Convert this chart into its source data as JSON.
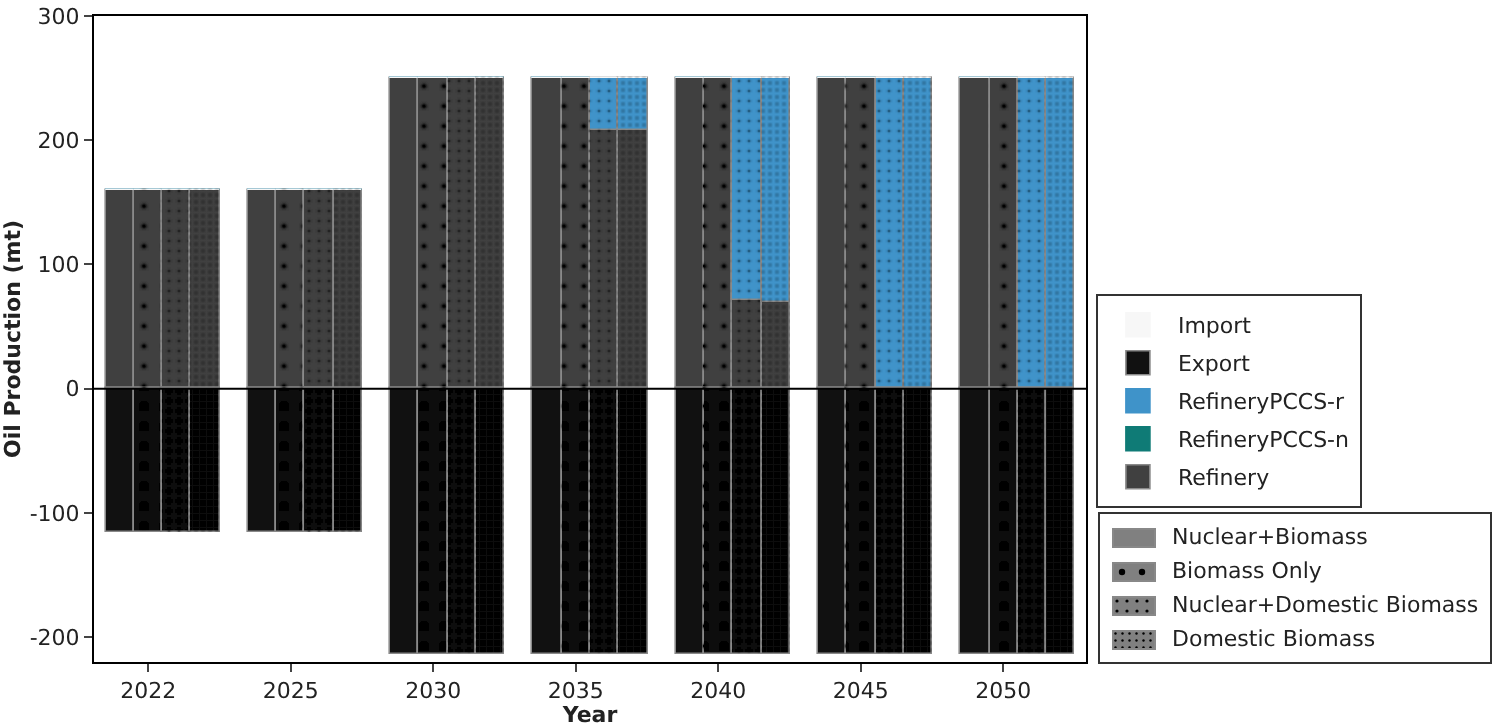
{
  "chart_data": {
    "type": "bar",
    "stacked": true,
    "xlabel": "Year",
    "ylabel": "Oil Production (mt)",
    "categories": [
      null,
      "2022",
      null,
      null,
      null,
      null,
      "2025",
      null,
      null,
      null,
      null,
      "2030",
      null,
      null,
      null,
      null,
      "2035",
      null,
      null,
      null,
      null,
      "2040",
      null,
      null,
      null,
      null,
      "2045",
      null,
      null,
      null,
      null,
      "2050",
      null,
      null
    ],
    "ylim": [
      -220,
      300
    ],
    "yticks": [
      -200,
      -100,
      0,
      100,
      200,
      300
    ],
    "legend": "right",
    "ref_lines": [
      {
        "axis": "y",
        "value": 0,
        "color": "#000000"
      }
    ],
    "annotations": [
      "Nuclear+Biomass",
      "Biomass Only",
      "Nuclear+Domestic Biomass",
      "Domestic Biomass"
    ],
    "series": [
      {
        "name": "Refinery",
        "color": "#404040",
        "values": [
          160,
          160,
          160,
          160,
          null,
          160,
          160,
          160,
          160,
          null,
          250,
          250,
          250,
          250,
          null,
          250,
          250,
          208,
          208,
          null,
          250,
          250,
          72,
          69,
          null,
          250,
          250,
          0,
          0,
          null,
          250,
          250,
          0,
          0
        ]
      },
      {
        "name": "RefineryPCCS-n",
        "color": "#0f7b76",
        "values": [
          0,
          0,
          0,
          0,
          null,
          0,
          0,
          0,
          0,
          null,
          0,
          0,
          0,
          0,
          null,
          0,
          0,
          0,
          0,
          null,
          0,
          0,
          0,
          0,
          null,
          0,
          0,
          0,
          0,
          null,
          0,
          0,
          0,
          0
        ]
      },
      {
        "name": "RefineryPCCS-r",
        "color": "#3f93c9",
        "values": [
          0,
          0,
          0,
          0,
          null,
          0,
          0,
          0,
          0,
          null,
          0,
          0,
          0,
          0,
          null,
          0,
          0,
          42,
          42,
          null,
          0,
          0,
          178,
          181,
          null,
          0,
          0,
          250,
          250,
          null,
          0,
          0,
          250,
          250
        ]
      },
      {
        "name": "Export",
        "color": "#111111",
        "values": [
          -115,
          -115,
          -115,
          -115,
          null,
          -115,
          -115,
          -115,
          -115,
          null,
          -213,
          -213,
          -213,
          -213,
          null,
          -213,
          -213,
          -213,
          -213,
          null,
          -213,
          -213,
          -213,
          -213,
          null,
          -213,
          -213,
          -213,
          -213,
          null,
          -213,
          -213,
          -213,
          -213
        ]
      },
      {
        "name": "Import",
        "color": "#f7f7f7",
        "values": [
          0,
          0,
          0,
          0,
          null,
          0,
          0,
          0,
          0,
          null,
          0,
          0,
          0,
          0,
          null,
          0,
          0,
          0,
          0,
          null,
          0,
          0,
          0,
          0,
          null,
          0,
          0,
          0,
          0,
          null,
          0,
          0,
          0,
          0
        ]
      }
    ]
  }
}
